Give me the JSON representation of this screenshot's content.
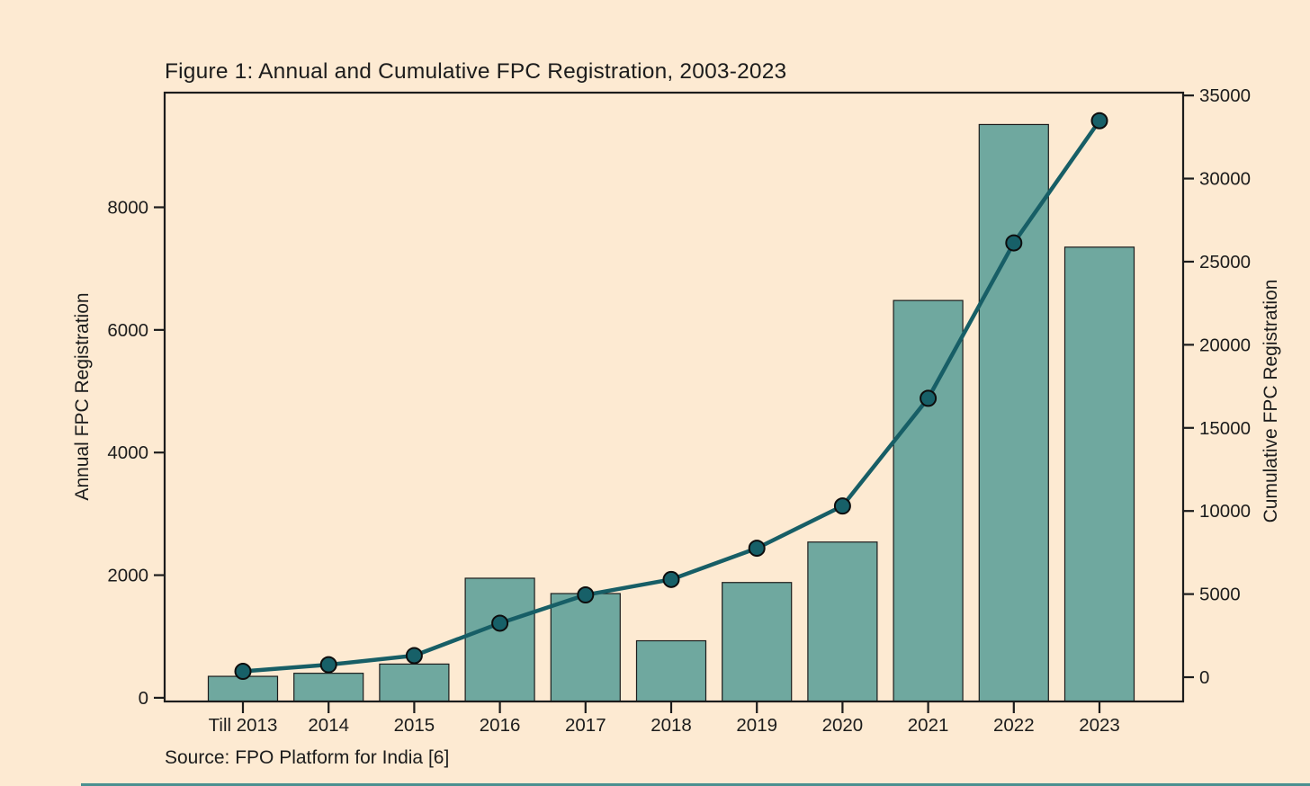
{
  "title": "Figure 1: Annual and Cumulative FPC Registration, 2003-2023",
  "source": "Source: FPO Platform for India [6]",
  "chart_data": {
    "type": "bar+line combo",
    "title": "Figure 1: Annual and Cumulative FPC Registration, 2003-2023",
    "categories": [
      "Till 2013",
      "2014",
      "2015",
      "2016",
      "2017",
      "2018",
      "2019",
      "2020",
      "2021",
      "2022",
      "2023"
    ],
    "series": [
      {
        "name": "Annual FPC Registration",
        "type": "bar",
        "axis": "left",
        "values": [
          350,
          400,
          550,
          1950,
          1700,
          930,
          1880,
          2540,
          6480,
          9350,
          7350
        ]
      },
      {
        "name": "Cumulative FPC Registration",
        "type": "line",
        "axis": "right",
        "values": [
          350,
          750,
          1300,
          3250,
          4950,
          5880,
          7760,
          10300,
          16780,
          26130,
          33480
        ]
      }
    ],
    "left_axis": {
      "label": "Annual FPC Registration",
      "ticks": [
        0,
        2000,
        4000,
        6000,
        8000
      ],
      "range": [
        -60,
        9870
      ]
    },
    "right_axis": {
      "label": "Cumulative FPC Registration",
      "ticks": [
        0,
        5000,
        10000,
        15000,
        20000,
        25000,
        30000,
        35000
      ],
      "range": [
        -1460,
        35170
      ]
    },
    "grid": false,
    "legend": "none",
    "colors": {
      "background": "#FDEAD2",
      "bar_fill": "#6FA89F",
      "bar_edge": "#1c1c1c",
      "line": "#175E66",
      "marker_fill": "#176068",
      "marker_edge": "#0d0d0d",
      "axis": "#1c1c1c",
      "text": "#1c1c1c",
      "bottom_strip": "#4A9090"
    }
  }
}
